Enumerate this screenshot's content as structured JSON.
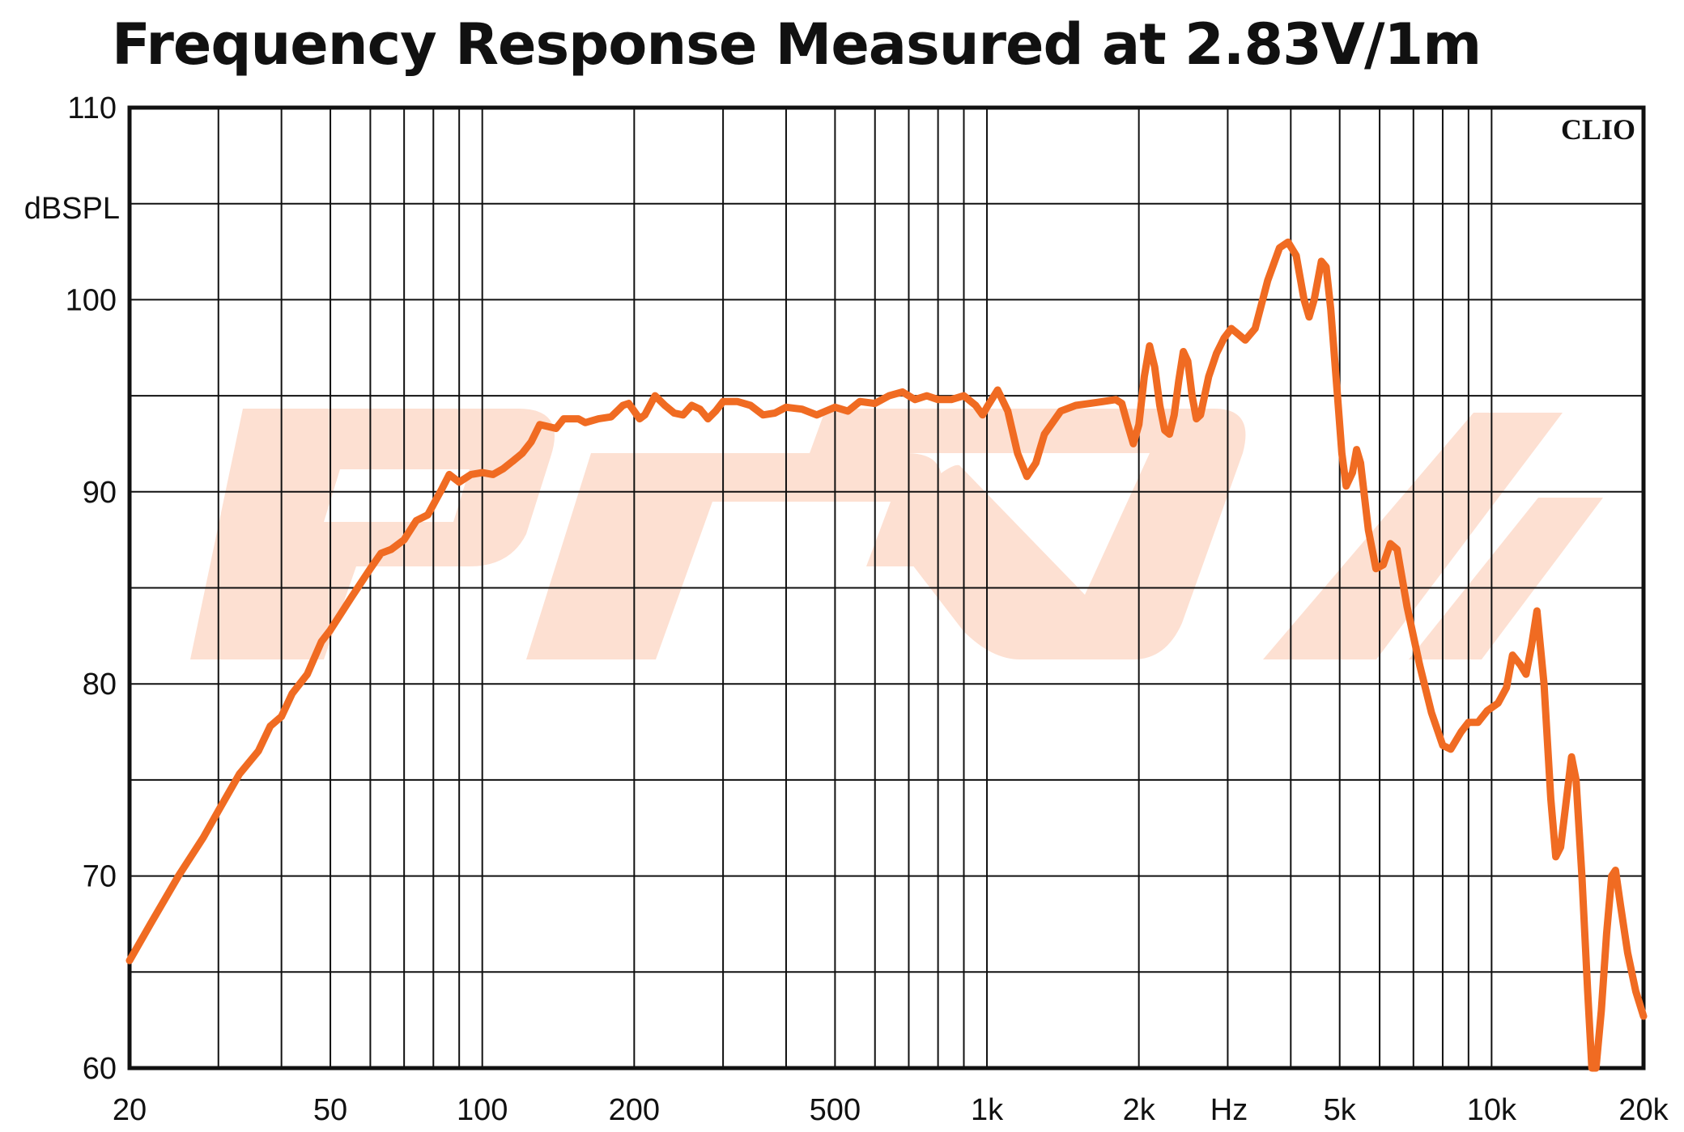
{
  "chart_data": {
    "type": "line",
    "title": "Frequency Response Measured at 2.83V/1m",
    "xlabel": "Hz",
    "ylabel": "dBSPL",
    "brand": "CLIO",
    "xscale": "log",
    "xlim": [
      20,
      20000
    ],
    "ylim": [
      60,
      110
    ],
    "grid": true,
    "x_ticks": [
      {
        "value": 20,
        "label": "20"
      },
      {
        "value": 50,
        "label": "50"
      },
      {
        "value": 100,
        "label": "100"
      },
      {
        "value": 200,
        "label": "200"
      },
      {
        "value": 500,
        "label": "500"
      },
      {
        "value": 1000,
        "label": "1k"
      },
      {
        "value": 2000,
        "label": "2k"
      },
      {
        "value": 5000,
        "label": "5k"
      },
      {
        "value": 10000,
        "label": "10k"
      },
      {
        "value": 20000,
        "label": "20k"
      }
    ],
    "y_ticks": [
      {
        "value": 60,
        "label": "60"
      },
      {
        "value": 70,
        "label": "70"
      },
      {
        "value": 80,
        "label": "80"
      },
      {
        "value": 90,
        "label": "90"
      },
      {
        "value": 100,
        "label": "100"
      },
      {
        "value": 110,
        "label": "110"
      }
    ],
    "colors": {
      "line": "#f06b22",
      "grid": "#111111",
      "watermark": "#fde0d2"
    },
    "series": [
      {
        "values": [
          [
            20,
            65.6
          ],
          [
            22,
            67.5
          ],
          [
            25,
            70.0
          ],
          [
            28,
            72.0
          ],
          [
            30,
            73.4
          ],
          [
            33,
            75.3
          ],
          [
            36,
            76.5
          ],
          [
            38,
            77.8
          ],
          [
            40,
            78.3
          ],
          [
            42,
            79.5
          ],
          [
            45,
            80.5
          ],
          [
            48,
            82.2
          ],
          [
            50,
            82.8
          ],
          [
            55,
            84.5
          ],
          [
            60,
            86.0
          ],
          [
            63,
            86.8
          ],
          [
            66,
            87.0
          ],
          [
            70,
            87.5
          ],
          [
            74,
            88.5
          ],
          [
            78,
            88.8
          ],
          [
            83,
            90.1
          ],
          [
            86,
            90.9
          ],
          [
            90,
            90.5
          ],
          [
            95,
            90.9
          ],
          [
            100,
            91.0
          ],
          [
            105,
            90.9
          ],
          [
            110,
            91.2
          ],
          [
            115,
            91.6
          ],
          [
            120,
            92.0
          ],
          [
            125,
            92.6
          ],
          [
            130,
            93.5
          ],
          [
            135,
            93.4
          ],
          [
            140,
            93.3
          ],
          [
            145,
            93.8
          ],
          [
            155,
            93.8
          ],
          [
            160,
            93.6
          ],
          [
            170,
            93.8
          ],
          [
            180,
            93.9
          ],
          [
            190,
            94.5
          ],
          [
            195,
            94.6
          ],
          [
            200,
            94.2
          ],
          [
            205,
            93.8
          ],
          [
            210,
            94.0
          ],
          [
            220,
            95.0
          ],
          [
            230,
            94.5
          ],
          [
            240,
            94.1
          ],
          [
            250,
            94.0
          ],
          [
            260,
            94.5
          ],
          [
            270,
            94.3
          ],
          [
            280,
            93.8
          ],
          [
            290,
            94.2
          ],
          [
            300,
            94.7
          ],
          [
            320,
            94.7
          ],
          [
            340,
            94.5
          ],
          [
            360,
            94.0
          ],
          [
            380,
            94.1
          ],
          [
            400,
            94.4
          ],
          [
            430,
            94.3
          ],
          [
            460,
            94.0
          ],
          [
            500,
            94.4
          ],
          [
            530,
            94.2
          ],
          [
            560,
            94.7
          ],
          [
            600,
            94.6
          ],
          [
            640,
            95.0
          ],
          [
            680,
            95.2
          ],
          [
            720,
            94.8
          ],
          [
            760,
            95.0
          ],
          [
            800,
            94.8
          ],
          [
            850,
            94.8
          ],
          [
            900,
            95.0
          ],
          [
            950,
            94.5
          ],
          [
            980,
            94.0
          ],
          [
            1000,
            94.4
          ],
          [
            1050,
            95.3
          ],
          [
            1100,
            94.2
          ],
          [
            1150,
            92.0
          ],
          [
            1200,
            90.8
          ],
          [
            1250,
            91.5
          ],
          [
            1300,
            93.0
          ],
          [
            1400,
            94.2
          ],
          [
            1500,
            94.5
          ],
          [
            1600,
            94.6
          ],
          [
            1700,
            94.7
          ],
          [
            1800,
            94.8
          ],
          [
            1850,
            94.6
          ],
          [
            1900,
            93.5
          ],
          [
            1950,
            92.5
          ],
          [
            2000,
            93.5
          ],
          [
            2050,
            96.0
          ],
          [
            2100,
            97.6
          ],
          [
            2150,
            96.5
          ],
          [
            2200,
            94.5
          ],
          [
            2250,
            93.2
          ],
          [
            2300,
            93.0
          ],
          [
            2350,
            94.0
          ],
          [
            2400,
            95.8
          ],
          [
            2450,
            97.3
          ],
          [
            2500,
            96.8
          ],
          [
            2550,
            95.0
          ],
          [
            2600,
            93.8
          ],
          [
            2650,
            94.0
          ],
          [
            2750,
            96.0
          ],
          [
            2850,
            97.2
          ],
          [
            2950,
            98.0
          ],
          [
            3050,
            98.5
          ],
          [
            3150,
            98.2
          ],
          [
            3250,
            97.9
          ],
          [
            3400,
            98.5
          ],
          [
            3600,
            101.0
          ],
          [
            3800,
            102.7
          ],
          [
            3950,
            103.0
          ],
          [
            4100,
            102.3
          ],
          [
            4250,
            100.0
          ],
          [
            4350,
            99.1
          ],
          [
            4450,
            100.0
          ],
          [
            4600,
            102.0
          ],
          [
            4700,
            101.7
          ],
          [
            4800,
            99.5
          ],
          [
            4950,
            95.0
          ],
          [
            5050,
            92.0
          ],
          [
            5150,
            90.3
          ],
          [
            5300,
            91.0
          ],
          [
            5400,
            92.2
          ],
          [
            5500,
            91.5
          ],
          [
            5700,
            88.0
          ],
          [
            5900,
            86.0
          ],
          [
            6100,
            86.2
          ],
          [
            6300,
            87.3
          ],
          [
            6500,
            87.0
          ],
          [
            6800,
            84.0
          ],
          [
            7200,
            81.0
          ],
          [
            7600,
            78.5
          ],
          [
            8000,
            76.8
          ],
          [
            8300,
            76.6
          ],
          [
            8700,
            77.5
          ],
          [
            9000,
            78.0
          ],
          [
            9400,
            78.0
          ],
          [
            9800,
            78.6
          ],
          [
            10300,
            79.0
          ],
          [
            10700,
            79.8
          ],
          [
            11000,
            81.5
          ],
          [
            11400,
            81.0
          ],
          [
            11700,
            80.5
          ],
          [
            12000,
            82.0
          ],
          [
            12300,
            83.8
          ],
          [
            12700,
            80.0
          ],
          [
            13100,
            74.0
          ],
          [
            13400,
            71.0
          ],
          [
            13700,
            71.5
          ],
          [
            14000,
            73.5
          ],
          [
            14400,
            76.2
          ],
          [
            14700,
            75.0
          ],
          [
            15100,
            70.0
          ],
          [
            15500,
            64.0
          ],
          [
            15800,
            59.5
          ],
          [
            16100,
            60.0
          ],
          [
            16500,
            63.0
          ],
          [
            16900,
            67.0
          ],
          [
            17300,
            70.0
          ],
          [
            17600,
            70.3
          ],
          [
            18000,
            68.5
          ],
          [
            18600,
            66.0
          ],
          [
            19300,
            64.0
          ],
          [
            20000,
            62.7
          ]
        ]
      }
    ]
  }
}
